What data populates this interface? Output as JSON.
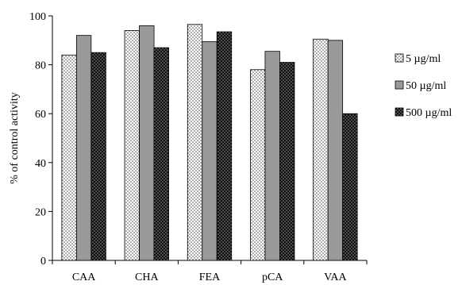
{
  "chart_data": {
    "type": "bar",
    "title": "",
    "xlabel": "",
    "ylabel": "% of control activity",
    "ylim": [
      0,
      100
    ],
    "yticks": [
      0,
      20,
      40,
      60,
      80,
      100
    ],
    "grid": false,
    "legend_position": "right",
    "categories": [
      "CAA",
      "CHA",
      "FEA",
      "pCA",
      "VAA"
    ],
    "series": [
      {
        "name": "5 µg/ml",
        "pattern": "dots",
        "values": [
          84,
          94,
          96.5,
          78,
          90.5
        ]
      },
      {
        "name": "50 µg/ml",
        "pattern": "gray",
        "values": [
          92,
          96,
          89.5,
          85.5,
          90
        ]
      },
      {
        "name": "500 µg/ml",
        "pattern": "black-dots",
        "values": [
          85,
          87,
          93.5,
          81,
          60
        ]
      }
    ]
  }
}
